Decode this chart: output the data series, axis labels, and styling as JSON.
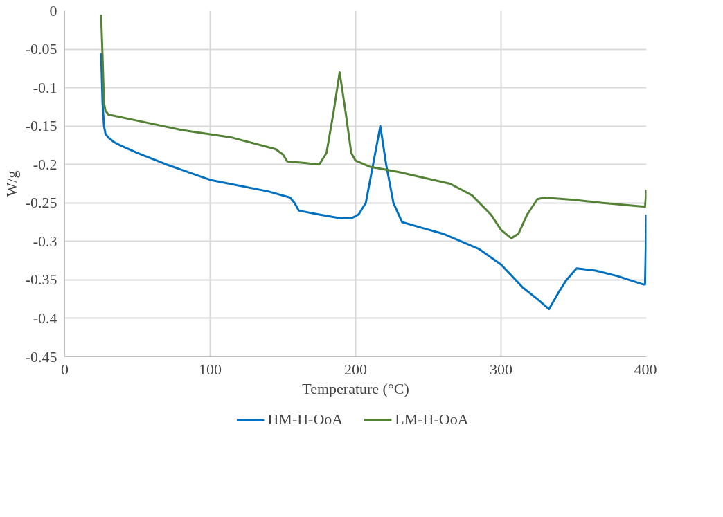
{
  "chart_data": {
    "type": "line",
    "xlabel": "Temperature (°C)",
    "ylabel": "W/g",
    "xlim": [
      0,
      400
    ],
    "xticks": [
      0,
      100,
      200,
      300,
      400
    ],
    "ylim": [
      -0.45,
      0
    ],
    "yticks": [
      -0.45,
      -0.4,
      -0.35,
      -0.3,
      -0.25,
      -0.2,
      -0.15,
      -0.1,
      -0.05,
      0
    ],
    "grid": true,
    "legend": "bottom",
    "marker": "none",
    "line_style": "solid",
    "series": [
      {
        "name": "HM-H-OoA",
        "color": "#0070c0",
        "x": [
          25,
          26,
          27,
          28,
          30,
          34,
          38,
          50,
          70,
          100,
          140,
          155,
          158,
          161,
          175,
          190,
          197,
          202,
          207,
          212,
          217,
          221,
          226,
          232,
          245,
          260,
          285,
          300,
          315,
          325,
          333,
          340,
          345,
          352,
          365,
          380,
          398,
          399,
          400
        ],
        "values": [
          -0.055,
          -0.12,
          -0.15,
          -0.16,
          -0.165,
          -0.171,
          -0.175,
          -0.185,
          -0.2,
          -0.22,
          -0.235,
          -0.243,
          -0.25,
          -0.26,
          -0.265,
          -0.27,
          -0.27,
          -0.265,
          -0.25,
          -0.2,
          -0.15,
          -0.2,
          -0.25,
          -0.275,
          -0.282,
          -0.29,
          -0.31,
          -0.33,
          -0.36,
          -0.375,
          -0.388,
          -0.365,
          -0.35,
          -0.335,
          -0.338,
          -0.345,
          -0.356,
          -0.356,
          -0.265
        ]
      },
      {
        "name": "LM-H-OoA",
        "color": "#548235",
        "x": [
          25,
          26,
          27,
          28,
          30,
          50,
          80,
          115,
          145,
          150,
          153,
          165,
          175,
          180,
          185,
          189,
          193,
          197,
          200,
          210,
          230,
          265,
          280,
          293,
          300,
          307,
          312,
          318,
          325,
          330,
          350,
          370,
          399,
          400
        ],
        "values": [
          -0.005,
          -0.06,
          -0.12,
          -0.13,
          -0.135,
          -0.143,
          -0.155,
          -0.165,
          -0.18,
          -0.187,
          -0.196,
          -0.198,
          -0.2,
          -0.185,
          -0.13,
          -0.08,
          -0.13,
          -0.185,
          -0.195,
          -0.203,
          -0.21,
          -0.225,
          -0.24,
          -0.265,
          -0.285,
          -0.296,
          -0.29,
          -0.265,
          -0.245,
          -0.243,
          -0.246,
          -0.25,
          -0.255,
          -0.233
        ]
      }
    ]
  }
}
